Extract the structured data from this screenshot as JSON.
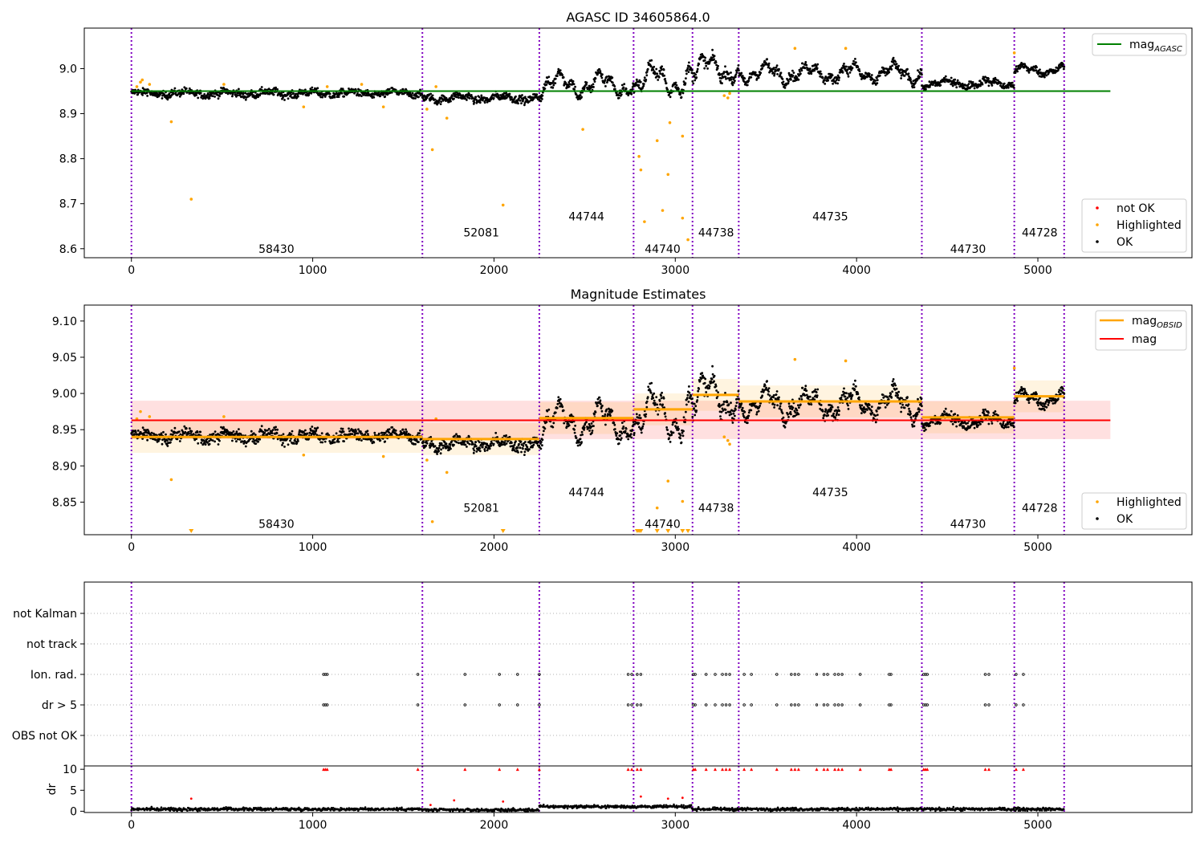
{
  "chart_data": [
    {
      "type": "scatter",
      "title": "AGASC ID 34605864.0",
      "xlim": [
        -260,
        5850
      ],
      "ylim": [
        8.58,
        9.09
      ],
      "x_ticks": [
        0,
        1000,
        2000,
        3000,
        4000,
        5000
      ],
      "y_ticks": [
        8.6,
        8.7,
        8.8,
        8.9,
        9.0
      ],
      "grid": false,
      "obs_boundaries": [
        0,
        1605,
        2250,
        2770,
        3095,
        3350,
        4360,
        4870,
        5145
      ],
      "obsids": [
        {
          "id": "58430",
          "x": 800,
          "y": 8.6
        },
        {
          "id": "52081",
          "x": 1930,
          "y": 8.636
        },
        {
          "id": "44744",
          "x": 2510,
          "y": 8.672
        },
        {
          "id": "44740",
          "x": 2930,
          "y": 8.6
        },
        {
          "id": "44738",
          "x": 3225,
          "y": 8.636
        },
        {
          "id": "44735",
          "x": 3855,
          "y": 8.672
        },
        {
          "id": "44730",
          "x": 4615,
          "y": 8.6
        },
        {
          "id": "44728",
          "x": 5010,
          "y": 8.636
        }
      ],
      "mag_agasc": {
        "value": 8.95,
        "x_range": [
          0,
          5400
        ],
        "color": "#008000"
      },
      "segments": [
        {
          "x0": 0,
          "x1": 1605,
          "level": 8.945,
          "scatter": 0.008,
          "wobble": 0.004
        },
        {
          "x0": 1605,
          "x1": 2250,
          "level": 8.935,
          "scatter": 0.008,
          "wobble": 0.005
        },
        {
          "x0": 2250,
          "x1": 2770,
          "level": 8.965,
          "scatter": 0.01,
          "wobble": 0.02
        },
        {
          "x0": 2770,
          "x1": 3095,
          "level": 8.975,
          "scatter": 0.012,
          "wobble": 0.025
        },
        {
          "x0": 3095,
          "x1": 3350,
          "level": 9.0,
          "scatter": 0.012,
          "wobble": 0.02
        },
        {
          "x0": 3350,
          "x1": 4360,
          "level": 8.99,
          "scatter": 0.01,
          "wobble": 0.015
        },
        {
          "x0": 4360,
          "x1": 4870,
          "level": 8.967,
          "scatter": 0.008,
          "wobble": 0.006
        },
        {
          "x0": 4870,
          "x1": 5145,
          "level": 8.997,
          "scatter": 0.008,
          "wobble": 0.007
        }
      ],
      "highlighted": [
        [
          30,
          8.96
        ],
        [
          50,
          8.97
        ],
        [
          60,
          8.975
        ],
        [
          100,
          8.965
        ],
        [
          220,
          8.882
        ],
        [
          330,
          8.71
        ],
        [
          510,
          8.965
        ],
        [
          950,
          8.915
        ],
        [
          1080,
          8.96
        ],
        [
          1270,
          8.965
        ],
        [
          1390,
          8.915
        ],
        [
          1630,
          8.91
        ],
        [
          1660,
          8.82
        ],
        [
          1680,
          8.96
        ],
        [
          1740,
          8.89
        ],
        [
          2050,
          8.697
        ],
        [
          2490,
          8.865
        ],
        [
          2800,
          8.805
        ],
        [
          2810,
          8.775
        ],
        [
          2830,
          8.66
        ],
        [
          2900,
          8.84
        ],
        [
          2930,
          8.685
        ],
        [
          2960,
          8.765
        ],
        [
          2970,
          8.88
        ],
        [
          3040,
          8.85
        ],
        [
          3040,
          8.668
        ],
        [
          3070,
          8.62
        ],
        [
          3270,
          8.94
        ],
        [
          3290,
          8.935
        ],
        [
          3300,
          8.945
        ],
        [
          3660,
          9.045
        ],
        [
          3940,
          9.045
        ],
        [
          4870,
          9.035
        ]
      ],
      "legend": [
        {
          "label": "mag",
          "sub": "AGASC",
          "kind": "line",
          "color": "#008000"
        },
        {
          "label": "not OK",
          "kind": "dot",
          "color": "#ff0000"
        },
        {
          "label": "Highlighted",
          "kind": "dot",
          "color": "#ffa500"
        },
        {
          "label": "OK",
          "kind": "dot",
          "color": "#000000"
        }
      ]
    },
    {
      "type": "scatter",
      "title": "Magnitude Estimates",
      "xlim": [
        -260,
        5850
      ],
      "ylim": [
        8.805,
        9.122
      ],
      "x_ticks": [
        0,
        1000,
        2000,
        3000,
        4000,
        5000
      ],
      "y_ticks": [
        8.85,
        8.9,
        8.95,
        9.0,
        9.05,
        9.1
      ],
      "grid": false,
      "mag": {
        "value": 8.963,
        "band": [
          8.937,
          8.99
        ],
        "x_range": [
          0,
          5400
        ],
        "color": "#ff0000"
      },
      "mag_obsid": [
        {
          "x0": 0,
          "x1": 1605,
          "value": 8.94
        },
        {
          "x0": 1605,
          "x1": 2250,
          "value": 8.937
        },
        {
          "x0": 2250,
          "x1": 2770,
          "value": 8.966
        },
        {
          "x0": 2770,
          "x1": 3095,
          "value": 8.978
        },
        {
          "x0": 3095,
          "x1": 3350,
          "value": 8.998
        },
        {
          "x0": 3350,
          "x1": 4360,
          "value": 8.989
        },
        {
          "x0": 4360,
          "x1": 4870,
          "value": 8.967
        },
        {
          "x0": 4870,
          "x1": 5145,
          "value": 8.996
        }
      ],
      "obsids": [
        {
          "id": "58430",
          "x": 800,
          "y": 8.82
        },
        {
          "id": "52081",
          "x": 1930,
          "y": 8.842
        },
        {
          "id": "44744",
          "x": 2510,
          "y": 8.864
        },
        {
          "id": "44740",
          "x": 2930,
          "y": 8.82
        },
        {
          "id": "44738",
          "x": 3225,
          "y": 8.842
        },
        {
          "id": "44735",
          "x": 3855,
          "y": 8.864
        },
        {
          "id": "44730",
          "x": 4615,
          "y": 8.82
        },
        {
          "id": "44728",
          "x": 5010,
          "y": 8.842
        }
      ],
      "highlighted": [
        [
          30,
          8.965
        ],
        [
          50,
          8.975
        ],
        [
          100,
          8.968
        ],
        [
          220,
          8.881
        ],
        [
          510,
          8.968
        ],
        [
          950,
          8.915
        ],
        [
          1390,
          8.913
        ],
        [
          1630,
          8.908
        ],
        [
          1660,
          8.823
        ],
        [
          1680,
          8.965
        ],
        [
          1740,
          8.891
        ],
        [
          2900,
          8.842
        ],
        [
          2960,
          8.879
        ],
        [
          3040,
          8.851
        ],
        [
          3270,
          8.94
        ],
        [
          3290,
          8.935
        ],
        [
          3300,
          8.93
        ],
        [
          3660,
          9.047
        ],
        [
          3940,
          9.045
        ],
        [
          4870,
          9.035
        ]
      ],
      "clipped_low_x": [
        330,
        2050,
        2790,
        2800,
        2810,
        2900,
        2960,
        3040,
        3070
      ],
      "legend": [
        {
          "label": "mag",
          "sub": "OBSID",
          "kind": "line",
          "color": "#ffa500"
        },
        {
          "label": "mag",
          "kind": "line",
          "color": "#ff0000"
        },
        {
          "label": "Highlighted",
          "kind": "dot",
          "color": "#ffa500"
        },
        {
          "label": "OK",
          "kind": "dot",
          "color": "#000000"
        }
      ]
    },
    {
      "type": "scatter",
      "xlim": [
        -260,
        5850
      ],
      "x_ticks": [
        0,
        1000,
        2000,
        3000,
        4000,
        5000
      ],
      "categories": [
        "not Kalman",
        "not track",
        "Ion. rad.",
        "dr > 5",
        "OBS not OK"
      ],
      "flag_x": [
        1060,
        1070,
        1080,
        1580,
        1840,
        2030,
        2130,
        2250,
        2740,
        2760,
        2790,
        2810,
        3100,
        3110,
        3170,
        3220,
        3260,
        3280,
        3300,
        3380,
        3420,
        3560,
        3640,
        3660,
        3680,
        3780,
        3820,
        3840,
        3880,
        3900,
        3920,
        4020,
        4180,
        4190,
        4370,
        4380,
        4390,
        4710,
        4730,
        4880,
        4920
      ],
      "dr_ylim": [
        -0.3,
        10.8
      ],
      "dr_ticks": [
        0,
        5,
        10
      ],
      "dr_label": "dr",
      "dr_outliers": [
        [
          330,
          3.0
        ],
        [
          1650,
          1.5
        ],
        [
          1780,
          2.6
        ],
        [
          2050,
          2.3
        ],
        [
          2810,
          3.5
        ],
        [
          2960,
          3.0
        ],
        [
          3040,
          3.2
        ]
      ]
    }
  ]
}
